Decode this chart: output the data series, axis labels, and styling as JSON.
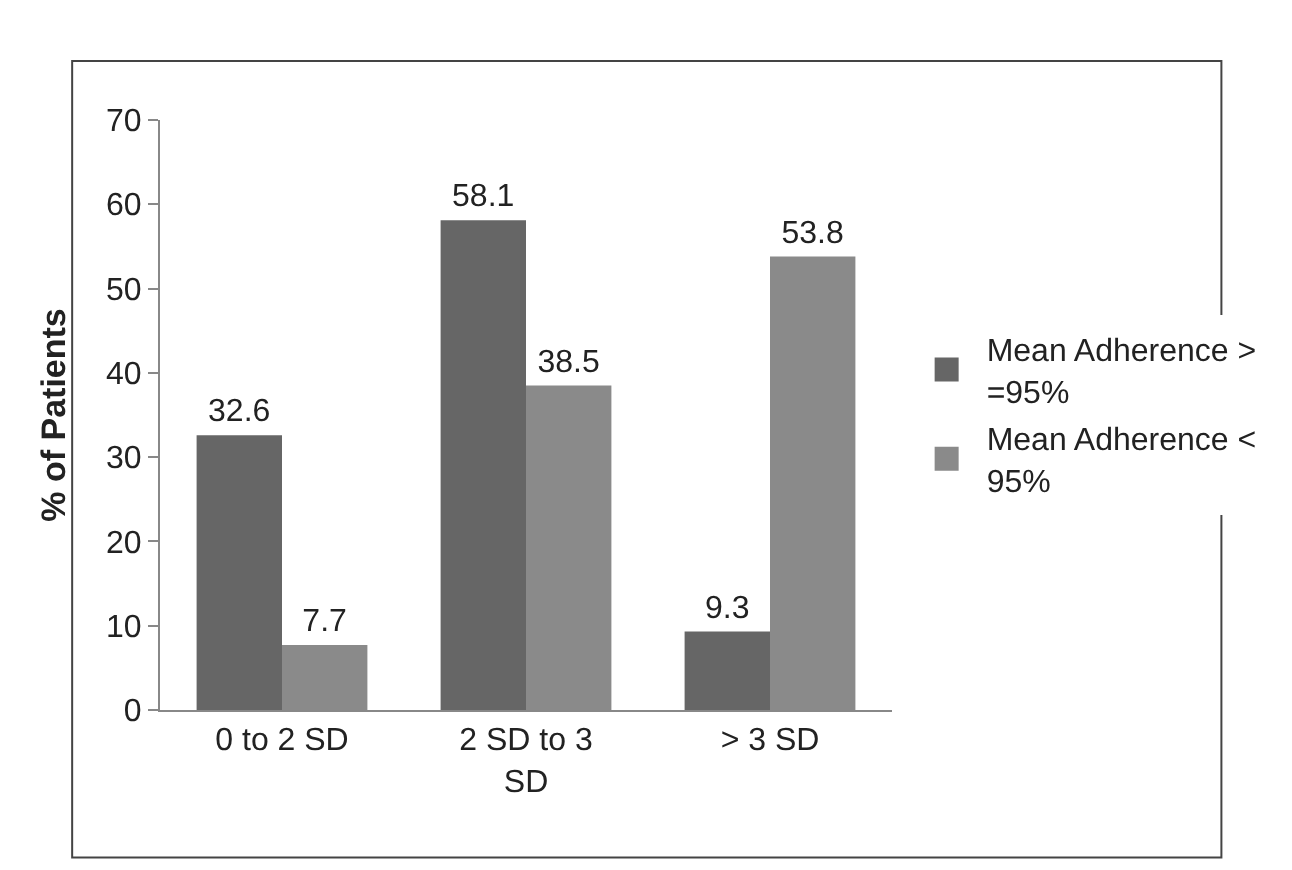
{
  "chart_data": {
    "type": "bar",
    "ylabel": "% of Patients",
    "categories": [
      "0 to 2 SD",
      "2 SD to 3 SD",
      "> 3 SD"
    ],
    "series": [
      {
        "name": "Mean Adherence > =95%",
        "color": "#666666",
        "values": [
          32.6,
          58.1,
          9.3
        ]
      },
      {
        "name": "Mean Adherence < 95%",
        "color": "#8a8a8a",
        "values": [
          7.7,
          38.5,
          53.8
        ]
      }
    ],
    "ylim": [
      0,
      70
    ],
    "yticks": [
      0,
      10,
      20,
      30,
      40,
      50,
      60,
      70
    ],
    "data_labels": true,
    "grid": false,
    "legend": "right"
  }
}
